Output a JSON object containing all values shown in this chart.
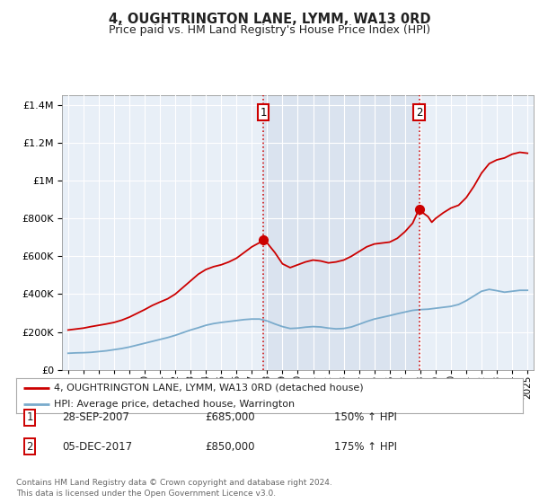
{
  "title": "4, OUGHTRINGTON LANE, LYMM, WA13 0RD",
  "subtitle": "Price paid vs. HM Land Registry's House Price Index (HPI)",
  "legend_line1": "4, OUGHTRINGTON LANE, LYMM, WA13 0RD (detached house)",
  "legend_line2": "HPI: Average price, detached house, Warrington",
  "footnote": "Contains HM Land Registry data © Crown copyright and database right 2024.\nThis data is licensed under the Open Government Licence v3.0.",
  "sale1_date": "28-SEP-2007",
  "sale1_price": "£685,000",
  "sale1_hpi": "150% ↑ HPI",
  "sale2_date": "05-DEC-2017",
  "sale2_price": "£850,000",
  "sale2_hpi": "175% ↑ HPI",
  "sale1_x": 2007.75,
  "sale1_y": 685000,
  "sale2_x": 2017.92,
  "sale2_y": 850000,
  "red_line_color": "#cc0000",
  "blue_line_color": "#7aabcc",
  "shade_color": "#dce9f5",
  "background_color": "#e8eff7",
  "ylim_max": 1450000,
  "xlim_start": 1994.6,
  "xlim_end": 2025.4,
  "yticks": [
    0,
    200000,
    400000,
    600000,
    800000,
    1000000,
    1200000,
    1400000
  ],
  "ytick_labels": [
    "£0",
    "£200K",
    "£400K",
    "£600K",
    "£800K",
    "£1M",
    "£1.2M",
    "£1.4M"
  ]
}
